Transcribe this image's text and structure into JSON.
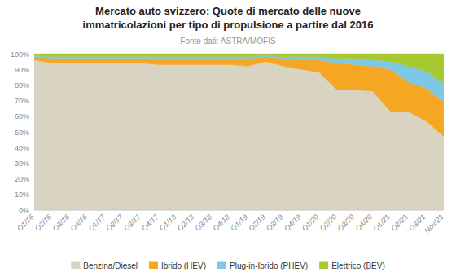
{
  "chart_data": {
    "type": "area",
    "stacked": true,
    "title": "Mercato auto svizzero: Quote di mercato delle nuove\nimmatricolazioni per tipo di propulsione a partire dal 2016",
    "subtitle": "Fonte dati: ASTRA/MOFIS",
    "categories": [
      "Q1/16",
      "Q2/16",
      "Q3/16",
      "Q4/16",
      "Q1/17",
      "Q2/17",
      "Q3/17",
      "Q4/17",
      "Q1/18",
      "Q2/18",
      "Q3/18",
      "Q4/18",
      "Q1/19",
      "Q2/19",
      "Q3/19",
      "Q4/19",
      "Q1/20",
      "Q2/20",
      "Q3/20",
      "Q4/20",
      "Q1/21",
      "Q2/21",
      "Q3/21",
      "Nov/21"
    ],
    "series": [
      {
        "name": "Benzina/Diesel",
        "color": "#d9d3c2",
        "values": [
          96,
          94,
          94,
          94,
          94,
          94,
          94,
          93,
          93,
          93,
          93,
          93,
          92,
          95,
          92,
          90,
          88,
          77,
          77,
          76,
          63,
          63,
          57,
          47
        ]
      },
      {
        "name": "Ibrido (HEV)",
        "color": "#f5a623",
        "values": [
          2,
          3,
          3,
          3,
          3,
          3,
          3,
          4,
          4,
          4,
          4,
          4,
          5,
          3,
          5,
          6,
          8,
          17,
          16,
          16,
          27,
          19,
          21,
          22
        ]
      },
      {
        "name": "Plug-in-Ibrido (PHEV)",
        "color": "#7ec8e3",
        "values": [
          1,
          1,
          1,
          1,
          1,
          1,
          1,
          1,
          1,
          1,
          1,
          1,
          1,
          1,
          1,
          2,
          2,
          3,
          4,
          4,
          5,
          10,
          11,
          12
        ]
      },
      {
        "name": "Elettrico (BEV)",
        "color": "#a8c832",
        "values": [
          1,
          2,
          2,
          2,
          2,
          2,
          2,
          2,
          2,
          2,
          2,
          2,
          2,
          1,
          2,
          2,
          2,
          3,
          3,
          4,
          5,
          8,
          11,
          19
        ]
      }
    ],
    "ylim": [
      0,
      100
    ],
    "yticks": [
      {
        "value": 0,
        "label": "0%"
      },
      {
        "value": 10,
        "label": "10%"
      },
      {
        "value": 20,
        "label": "20%"
      },
      {
        "value": 30,
        "label": "30%"
      },
      {
        "value": 40,
        "label": "40%"
      },
      {
        "value": 50,
        "label": "50%"
      },
      {
        "value": 60,
        "label": "60%"
      },
      {
        "value": 70,
        "label": "70%"
      },
      {
        "value": 80,
        "label": "80%"
      },
      {
        "value": 90,
        "label": "90%"
      },
      {
        "value": 100,
        "label": "100%"
      }
    ],
    "grid": true,
    "legend": "bottom"
  }
}
